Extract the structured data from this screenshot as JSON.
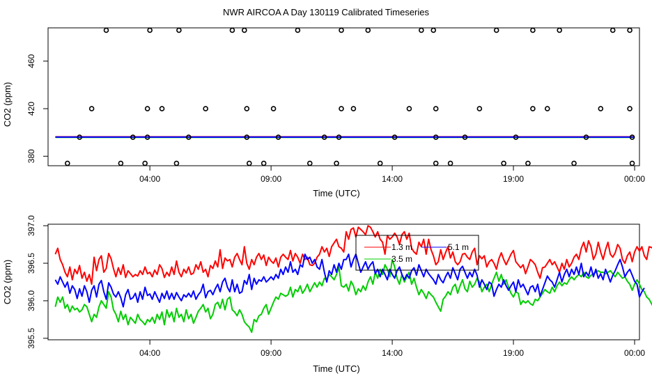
{
  "title": "NWR AIRCOA A  Day 130119  Calibrated Timeseries",
  "chart_data": [
    {
      "type": "scatter",
      "xlabel": "Time (UTC)",
      "ylabel": "CO2 (ppm)",
      "x_ticks": [
        4,
        9,
        14,
        19,
        24
      ],
      "x_tick_labels": [
        "04:00",
        "09:00",
        "14:00",
        "19:00",
        "00:00"
      ],
      "xlim": [
        -0.2,
        24.2
      ],
      "y_ticks": [
        380,
        420,
        460
      ],
      "ylim": [
        372,
        488
      ],
      "points": [
        [
          0.6,
          374
        ],
        [
          1.1,
          396
        ],
        [
          1.6,
          420
        ],
        [
          2.2,
          486
        ],
        [
          2.8,
          374
        ],
        [
          3.3,
          396
        ],
        [
          3.8,
          374
        ],
        [
          3.9,
          396
        ],
        [
          3.9,
          420
        ],
        [
          4.0,
          486
        ],
        [
          4.5,
          420
        ],
        [
          5.1,
          374
        ],
        [
          5.2,
          486
        ],
        [
          5.6,
          396
        ],
        [
          6.3,
          420
        ],
        [
          7.4,
          486
        ],
        [
          7.9,
          486
        ],
        [
          8.0,
          420
        ],
        [
          8.0,
          396
        ],
        [
          8.1,
          374
        ],
        [
          8.7,
          374
        ],
        [
          9.1,
          420
        ],
        [
          9.3,
          396
        ],
        [
          10.1,
          486
        ],
        [
          10.6,
          374
        ],
        [
          11.2,
          396
        ],
        [
          11.7,
          374
        ],
        [
          11.8,
          396
        ],
        [
          11.9,
          420
        ],
        [
          11.9,
          486
        ],
        [
          12.4,
          420
        ],
        [
          13.0,
          486
        ],
        [
          13.5,
          374
        ],
        [
          14.1,
          396
        ],
        [
          14.7,
          420
        ],
        [
          15.2,
          486
        ],
        [
          15.7,
          486
        ],
        [
          15.8,
          420
        ],
        [
          15.8,
          396
        ],
        [
          15.8,
          374
        ],
        [
          16.4,
          374
        ],
        [
          17.0,
          396
        ],
        [
          17.6,
          420
        ],
        [
          18.3,
          486
        ],
        [
          18.6,
          374
        ],
        [
          19.1,
          396
        ],
        [
          19.6,
          374
        ],
        [
          19.8,
          420
        ],
        [
          19.8,
          486
        ],
        [
          20.4,
          420
        ],
        [
          20.9,
          486
        ],
        [
          21.5,
          374
        ],
        [
          22.0,
          396
        ],
        [
          22.6,
          420
        ],
        [
          23.1,
          486
        ],
        [
          23.8,
          486
        ],
        [
          23.8,
          420
        ],
        [
          23.9,
          396
        ],
        [
          23.9,
          374
        ]
      ],
      "series": [
        {
          "color": "#ff0000",
          "level": 396.3
        },
        {
          "color": "#00cc00",
          "level": 395.9
        },
        {
          "color": "#0000ff",
          "level": 396.1
        }
      ]
    },
    {
      "type": "line",
      "xlabel": "Time (UTC)",
      "ylabel": "CO2 (ppm)",
      "x_ticks": [
        4,
        9,
        14,
        19,
        24
      ],
      "x_tick_labels": [
        "04:00",
        "09:00",
        "14:00",
        "19:00",
        "00:00"
      ],
      "xlim": [
        -0.2,
        24.2
      ],
      "y_ticks": [
        395.5,
        396.0,
        396.5,
        397.0
      ],
      "y_tick_labels": [
        "395.5",
        "396.0",
        "396.5",
        "397.0"
      ],
      "ylim": [
        395.48,
        397.02
      ],
      "x_start": 0.1,
      "x_step": 0.1,
      "legend": {
        "placement": "top-center",
        "entries": [
          {
            "label": "1.3 m",
            "color": "#ff0000"
          },
          {
            "label": "5.1 m",
            "color": "#0000ff"
          },
          {
            "label": "3.5 m",
            "color": "#00cc00"
          }
        ]
      },
      "series": [
        {
          "name": "1.3 m",
          "color": "#ff0000",
          "values": [
            396.62,
            396.7,
            396.55,
            396.48,
            396.38,
            396.32,
            396.45,
            396.28,
            396.42,
            396.36,
            396.47,
            396.3,
            396.38,
            396.26,
            396.35,
            396.22,
            396.58,
            396.4,
            396.55,
            396.6,
            396.38,
            396.43,
            396.63,
            396.56,
            396.43,
            396.32,
            396.44,
            396.35,
            396.48,
            396.31,
            396.4,
            396.36,
            396.32,
            396.35,
            396.33,
            396.4,
            396.35,
            396.45,
            396.36,
            396.38,
            396.32,
            396.41,
            396.35,
            396.48,
            396.43,
            396.31,
            396.38,
            396.33,
            396.45,
            396.35,
            396.53,
            396.38,
            396.32,
            396.42,
            396.37,
            396.45,
            396.35,
            396.37,
            396.48,
            396.42,
            396.52,
            396.38,
            396.42,
            396.32,
            396.47,
            396.43,
            396.53,
            396.45,
            396.68,
            396.43,
            396.57,
            396.53,
            396.55,
            396.45,
            396.58,
            396.63,
            396.55,
            396.48,
            396.72,
            396.5,
            396.42,
            396.55,
            396.48,
            396.58,
            396.63,
            396.55,
            396.61,
            396.47,
            396.58,
            396.53,
            396.5,
            396.57,
            396.45,
            396.58,
            396.62,
            396.58,
            396.55,
            396.67,
            396.53,
            396.63,
            396.58,
            396.5,
            396.62,
            396.55,
            396.58,
            396.48,
            396.47,
            396.5,
            396.58,
            396.62,
            396.72,
            396.65,
            396.7,
            396.59,
            396.72,
            396.77,
            396.82,
            396.72,
            396.7,
            396.65,
            396.92,
            396.82,
            396.95,
            396.97,
            396.85,
            396.98,
            396.95,
            396.92,
            396.88,
            397.0,
            396.98,
            396.92,
            396.85,
            396.92,
            396.82,
            396.78,
            396.62,
            396.87,
            396.82,
            396.85,
            396.9,
            396.85,
            396.75,
            396.88,
            396.92,
            396.82,
            396.9,
            396.7,
            396.65,
            396.62,
            396.78,
            396.72,
            396.82,
            396.62,
            396.82,
            396.68,
            396.6,
            396.48,
            396.52,
            396.68,
            396.55,
            396.64,
            396.72,
            396.57,
            396.65,
            396.52,
            396.48,
            396.52,
            396.62,
            396.63,
            396.58,
            396.55,
            396.65,
            396.7,
            396.48,
            396.6,
            396.56,
            396.6,
            396.45,
            396.52,
            396.55,
            396.5,
            396.42,
            396.56,
            396.64,
            396.55,
            396.48,
            396.55,
            396.62,
            396.67,
            396.52,
            396.48,
            396.44,
            396.48,
            396.36,
            396.45,
            396.55,
            396.52,
            396.48,
            396.38,
            396.3,
            396.44,
            396.45,
            396.5,
            396.55,
            396.48,
            396.52,
            396.45,
            396.38,
            396.5,
            396.42,
            396.55,
            396.45,
            396.5,
            396.58,
            396.62,
            396.55,
            396.7,
            396.78,
            396.65,
            396.8,
            396.72,
            396.55,
            396.62,
            396.78,
            396.65,
            396.55,
            396.68,
            396.78,
            396.62,
            396.58,
            396.64,
            396.75,
            396.7,
            396.55,
            396.5,
            396.6,
            396.65,
            396.52,
            396.65,
            396.72,
            396.66,
            396.72,
            396.6,
            396.55,
            396.72,
            396.71,
            396.68,
            396.56,
            396.45,
            396.38,
            396.45
          ]
        },
        {
          "name": "5.1 m",
          "color": "#0000ff",
          "values": [
            396.28,
            396.22,
            396.32,
            396.25,
            396.18,
            396.25,
            396.1,
            396.2,
            396.15,
            396.03,
            396.16,
            396.06,
            396.2,
            396.12,
            395.98,
            396.14,
            396.2,
            396.05,
            396.22,
            396.27,
            396.12,
            396.02,
            396.24,
            396.18,
            396.09,
            396.05,
            396.12,
            396.04,
            395.92,
            396.08,
            396.15,
            396.02,
            396.04,
            396.1,
            395.98,
            396.12,
            396.02,
            396.18,
            396.07,
            396.09,
            396.02,
            396.12,
            396.05,
            395.98,
            396.1,
            396.03,
            396.13,
            396.02,
            396.1,
            396.02,
            396.11,
            396.05,
            396.0,
            396.08,
            396.05,
            396.1,
            396.05,
            396.13,
            396.02,
            396.08,
            396.12,
            396.22,
            396.04,
            396.12,
            396.14,
            396.08,
            396.16,
            396.22,
            396.12,
            396.25,
            396.3,
            396.18,
            396.12,
            396.28,
            396.12,
            396.22,
            396.1,
            396.12,
            396.27,
            396.22,
            396.35,
            396.15,
            396.3,
            396.22,
            396.28,
            396.26,
            396.32,
            396.25,
            396.28,
            396.32,
            396.28,
            396.35,
            396.3,
            396.42,
            396.35,
            396.45,
            396.38,
            396.52,
            396.38,
            396.42,
            396.35,
            396.48,
            396.45,
            396.62,
            396.55,
            396.58,
            396.5,
            396.55,
            396.45,
            396.42,
            396.55,
            396.38,
            396.25,
            396.4,
            396.35,
            396.48,
            396.38,
            396.5,
            396.42,
            396.55,
            396.55,
            396.62,
            396.45,
            396.55,
            396.62,
            396.5,
            396.38,
            396.45,
            396.52,
            396.42,
            396.48,
            396.52,
            396.36,
            396.42,
            396.32,
            396.42,
            396.35,
            396.28,
            396.42,
            396.35,
            396.3,
            396.4,
            396.45,
            396.35,
            396.28,
            396.35,
            396.3,
            396.4,
            396.44,
            396.34,
            396.48,
            396.4,
            396.32,
            396.42,
            396.36,
            396.32,
            396.28,
            396.22,
            396.35,
            396.28,
            396.24,
            396.32,
            396.38,
            396.3,
            396.44,
            396.36,
            396.28,
            396.42,
            396.46,
            396.38,
            396.3,
            396.38,
            396.32,
            396.42,
            396.34,
            396.18,
            396.28,
            396.22,
            396.15,
            396.25,
            396.22,
            396.06,
            396.15,
            396.22,
            396.18,
            396.28,
            396.2,
            396.14,
            396.2,
            396.25,
            396.12,
            396.28,
            396.18,
            396.22,
            396.15,
            396.08,
            396.18,
            396.2,
            396.12,
            396.22,
            396.06,
            396.15,
            396.24,
            396.33,
            396.28,
            396.25,
            396.18,
            396.28,
            396.38,
            396.25,
            396.35,
            396.42,
            396.32,
            396.42,
            396.35,
            396.45,
            396.35,
            396.5,
            396.32,
            396.38,
            396.33,
            396.45,
            396.32,
            396.42,
            396.3,
            396.36,
            396.28,
            396.42,
            396.34,
            396.25,
            396.34,
            396.4,
            396.48,
            396.55,
            396.45,
            396.32,
            396.38,
            396.42,
            396.34,
            396.26,
            396.22,
            396.05,
            396.12,
            396.17
          ]
        },
        {
          "name": "3.5 m",
          "color": "#00cc00",
          "values": [
            395.92,
            396.05,
            395.98,
            396.05,
            395.9,
            395.95,
            395.85,
            395.93,
            395.88,
            395.9,
            395.85,
            395.88,
            395.95,
            395.92,
            395.82,
            395.72,
            395.82,
            395.78,
            395.92,
            396.0,
            395.95,
            395.9,
            396.12,
            396.05,
            395.88,
            395.82,
            395.72,
            395.86,
            395.75,
            395.82,
            395.68,
            395.78,
            395.74,
            395.7,
            395.82,
            395.75,
            395.72,
            395.68,
            395.75,
            395.72,
            395.78,
            395.7,
            395.82,
            395.75,
            395.85,
            395.68,
            395.88,
            395.78,
            395.85,
            395.72,
            395.9,
            395.78,
            395.82,
            395.72,
            395.88,
            395.76,
            395.82,
            395.7,
            395.78,
            395.86,
            395.9,
            395.95,
            395.85,
            395.9,
            395.76,
            395.82,
            395.95,
            395.98,
            395.9,
            396.02,
            395.88,
            396.02,
            396.05,
            395.88,
            395.85,
            395.8,
            395.88,
            395.82,
            395.72,
            395.68,
            395.65,
            395.58,
            395.75,
            395.72,
            395.8,
            395.82,
            395.9,
            395.95,
            395.82,
            395.9,
            395.98,
            396.05,
            396.02,
            396.1,
            396.08,
            396.06,
            396.08,
            396.18,
            396.05,
            396.15,
            396.12,
            396.2,
            396.1,
            396.15,
            396.22,
            396.12,
            396.18,
            396.24,
            396.18,
            396.25,
            396.2,
            396.3,
            396.28,
            396.35,
            396.32,
            396.28,
            396.35,
            396.45,
            396.2,
            396.18,
            396.22,
            396.13,
            396.26,
            396.2,
            396.08,
            396.16,
            396.12,
            396.2,
            396.14,
            396.25,
            396.32,
            396.22,
            396.38,
            396.3,
            396.42,
            396.35,
            396.48,
            396.42,
            396.32,
            396.55,
            396.45,
            396.3,
            396.22,
            396.35,
            396.25,
            396.32,
            396.38,
            396.22,
            396.3,
            396.18,
            396.08,
            396.15,
            396.1,
            396.03,
            396.12,
            396.08,
            396.05,
            395.98,
            395.92,
            395.86,
            396.02,
            396.06,
            396.12,
            396.08,
            396.18,
            396.22,
            396.1,
            396.2,
            396.28,
            396.16,
            396.12,
            396.26,
            396.18,
            396.22,
            396.3,
            396.25,
            396.12,
            396.18,
            396.22,
            396.12,
            396.22,
            396.3,
            396.38,
            396.26,
            396.35,
            396.22,
            396.28,
            396.18,
            396.1,
            396.05,
            396.12,
            396.1,
            395.95,
            396.0,
            395.97,
            396.0,
            395.96,
            395.94,
            396.02,
            396.0,
            396.05,
            396.1,
            396.15,
            396.12,
            396.1,
            396.18,
            396.12,
            396.2,
            396.25,
            396.2,
            396.24,
            396.22,
            396.28,
            396.32,
            396.28,
            396.32,
            396.35,
            396.32,
            396.38,
            396.32,
            396.3,
            396.34,
            396.36,
            396.38,
            396.4,
            396.38,
            396.38,
            396.36,
            396.38,
            396.4,
            396.36,
            396.32,
            396.38,
            396.34,
            396.3,
            396.32,
            396.26,
            396.22,
            396.14,
            396.22,
            396.28,
            396.22,
            396.15,
            396.12,
            396.05,
            396.02,
            395.96,
            395.9,
            396.03,
            396.06
          ]
        }
      ]
    }
  ]
}
